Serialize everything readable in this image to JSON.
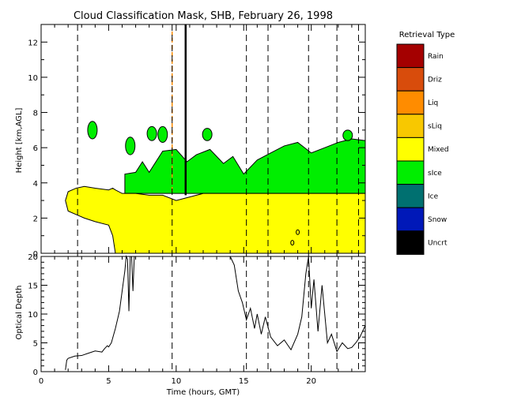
{
  "chart_data": {
    "type": "area",
    "title": "Cloud Classification Mask, SHB, February 26, 1998",
    "legend": {
      "title": "Retrieval Type",
      "position": "right",
      "entries": [
        {
          "label": "Rain",
          "color": "#a40000"
        },
        {
          "label": "Driz",
          "color": "#d84c0c"
        },
        {
          "label": "Liq",
          "color": "#ff8c00"
        },
        {
          "label": "sLiq",
          "color": "#f8c800"
        },
        {
          "label": "Mixed",
          "color": "#ffff00"
        },
        {
          "label": "sIce",
          "color": "#00ee00"
        },
        {
          "label": "Ice",
          "color": "#007070"
        },
        {
          "label": "Snow",
          "color": "#0018b8"
        },
        {
          "label": "Uncrt",
          "color": "#000000"
        }
      ]
    },
    "xlabel": "Time (hours, GMT)",
    "xlim": [
      0,
      24
    ],
    "xticks": [
      0,
      5,
      10,
      15,
      20
    ],
    "dashed_times": [
      2.7,
      9.7,
      15.2,
      16.8,
      19.8,
      21.9,
      23.5
    ],
    "upper": {
      "ylabel": "Height [km,AGL]",
      "ylim": [
        0,
        13
      ],
      "yticks": [
        0,
        2,
        4,
        6,
        8,
        10,
        12
      ],
      "mixed_region": {
        "time": [
          1.8,
          2.0,
          2.6,
          3.2,
          4.0,
          5.0,
          5.3,
          5.5,
          6.0,
          7.0,
          8.0,
          9.0,
          10.0,
          12.0,
          15.0,
          20.0,
          24.0
        ],
        "top_km": [
          3.0,
          3.5,
          3.7,
          3.8,
          3.7,
          3.6,
          3.7,
          3.6,
          3.4,
          3.4,
          3.3,
          3.3,
          3.0,
          3.4,
          3.4,
          3.4,
          3.4
        ],
        "base_left_km": [
          3.0,
          2.4,
          2.2,
          2.0,
          1.8,
          1.6,
          1.0,
          0.0
        ]
      },
      "sice_region": {
        "time": [
          6.2,
          7.0,
          7.5,
          8.0,
          9.0,
          10.0,
          10.8,
          11.5,
          12.5,
          13.5,
          14.2,
          15.0,
          16.0,
          17.0,
          18.0,
          19.0,
          20.0,
          21.0,
          22.0,
          23.0,
          24.0
        ],
        "top_km": [
          4.5,
          4.6,
          5.2,
          4.6,
          5.8,
          5.9,
          5.2,
          5.6,
          5.9,
          5.1,
          5.5,
          4.5,
          5.3,
          5.7,
          6.1,
          6.3,
          5.7,
          6.0,
          6.3,
          6.5,
          6.4
        ],
        "base_km": 3.4
      },
      "isolated_sice_patches": [
        {
          "time": 3.8,
          "top_km": 7.5,
          "base_km": 6.5
        },
        {
          "time": 6.6,
          "top_km": 6.6,
          "base_km": 5.6
        },
        {
          "time": 8.2,
          "top_km": 7.2,
          "base_km": 6.4
        },
        {
          "time": 9.0,
          "top_km": 7.2,
          "base_km": 6.3
        },
        {
          "time": 12.3,
          "top_km": 7.1,
          "base_km": 6.4
        },
        {
          "time": 22.7,
          "top_km": 7.0,
          "base_km": 6.4
        }
      ],
      "vertical_spikes": [
        {
          "time": 9.7,
          "from_km": 3.5,
          "to_km": 12.6
        },
        {
          "time": 10.7,
          "from_km": 3.3,
          "to_km": 13.0
        }
      ]
    },
    "lower": {
      "ylabel": "Optical Depth",
      "ylim": [
        0,
        20
      ],
      "yticks": [
        0,
        5,
        10,
        15,
        20
      ],
      "series": [
        {
          "x": [
            1.8,
            1.9,
            2.0,
            2.5,
            3.0,
            3.5,
            4.0,
            4.5,
            4.7,
            4.9,
            5.0,
            5.2,
            5.5,
            5.8,
            6.0,
            6.2,
            6.3,
            6.4,
            6.5,
            6.6,
            6.7,
            6.8,
            6.9,
            7.0,
            7.2,
            7.5,
            7.8,
            8.0,
            8.3,
            8.6,
            8.9,
            9.2,
            9.4,
            9.6,
            9.8,
            10.0,
            10.2,
            10.4,
            10.6,
            11.0,
            11.5,
            12.0,
            12.5,
            13.0,
            13.5,
            14.0,
            14.3,
            14.6,
            14.9,
            15.2,
            15.5,
            15.8,
            16.0,
            16.3,
            16.6,
            17.0,
            17.5,
            18.0,
            18.5,
            19.0,
            19.3,
            19.6,
            19.8,
            20.0,
            20.2,
            20.5,
            20.8,
            21.2,
            21.5,
            21.9,
            22.3,
            22.7,
            23.0,
            23.3,
            23.6,
            24.0
          ],
          "values": [
            0.3,
            2.0,
            2.3,
            2.7,
            2.8,
            3.2,
            3.6,
            3.4,
            4.0,
            4.5,
            4.3,
            5.0,
            7.5,
            10.5,
            14.0,
            17.5,
            20.0,
            19.5,
            10.5,
            20.0,
            20.0,
            14.0,
            20.0,
            20.0,
            20.0,
            20.0,
            20.0,
            20.0,
            20.0,
            20.0,
            20.0,
            20.0,
            20.0,
            20.0,
            20.0,
            20.0,
            20.0,
            20.0,
            20.0,
            20.0,
            20.0,
            20.0,
            20.0,
            20.0,
            20.0,
            20.0,
            18.5,
            14.0,
            12.0,
            9.0,
            11.0,
            7.5,
            10.0,
            6.5,
            9.5,
            6.0,
            4.5,
            5.5,
            3.8,
            6.5,
            9.5,
            17.0,
            20.0,
            11.0,
            16.0,
            7.0,
            15.0,
            5.0,
            6.5,
            3.5,
            5.0,
            4.0,
            4.2,
            5.0,
            6.0,
            8.0
          ]
        }
      ]
    }
  }
}
